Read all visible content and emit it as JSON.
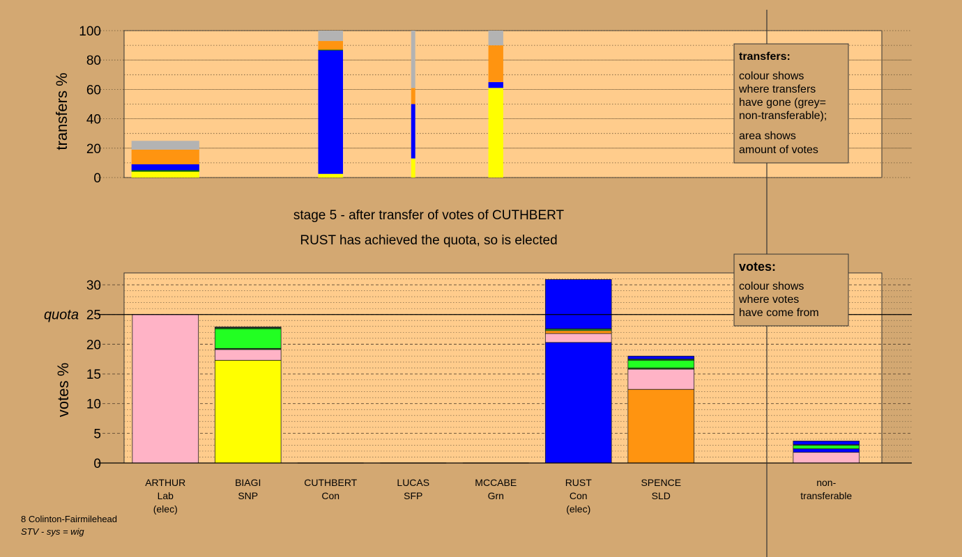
{
  "colors": {
    "page_bg": "#d3a872",
    "plot_bg": "#ffcc8c",
    "Lab": "#ffb3c6",
    "SNP": "#ffff00",
    "Con": "#0000ff",
    "SFP": "#006600",
    "Grn": "#22ff22",
    "SLD": "#ff9410",
    "nontransferable": "#b3b3b3"
  },
  "stage_title": "stage 5 - after transfer of votes of CUTHBERT",
  "stage_subtitle": "RUST has achieved the quota, so is elected",
  "footer": {
    "line1": "8 Colinton-Fairmilehead",
    "line2": "STV - sys = wig"
  },
  "transfers_box": {
    "title": "transfers:",
    "line1": "colour shows",
    "line2": "where transfers",
    "line3": "have gone (grey=",
    "line4": "non-transferable);",
    "line5": "area shows",
    "line6": "amount of votes"
  },
  "votes_box": {
    "title": "votes:",
    "line1": "colour shows",
    "line2": "where votes",
    "line3": "have come from"
  },
  "chart_data": [
    {
      "type": "bar",
      "ylabel": "transfers %",
      "ylim": [
        0,
        100
      ],
      "yticks": [
        0,
        20,
        40,
        60,
        80,
        100
      ],
      "bars": [
        {
          "center": 0.5,
          "width": 0.82,
          "segments": [
            {
              "party": "SNP",
              "value": 4
            },
            {
              "party": "SFP",
              "value": 1
            },
            {
              "party": "Con",
              "value": 4
            },
            {
              "party": "SLD",
              "value": 10
            },
            {
              "party": "nontransferable",
              "value": 6
            }
          ]
        },
        {
          "center": 2.5,
          "width": 0.3,
          "segments": [
            {
              "party": "SNP",
              "value": 2.5
            },
            {
              "party": "Con",
              "value": 84
            },
            {
              "party": "SFP",
              "value": 0.5
            },
            {
              "party": "SLD",
              "value": 6
            },
            {
              "party": "nontransferable",
              "value": 7
            }
          ]
        },
        {
          "center": 3.5,
          "width": 0.05,
          "segments": [
            {
              "party": "SNP",
              "value": 13
            },
            {
              "party": "Con",
              "value": 37
            },
            {
              "party": "SLD",
              "value": 11
            },
            {
              "party": "nontransferable",
              "value": 39
            }
          ]
        },
        {
          "center": 4.5,
          "width": 0.18,
          "segments": [
            {
              "party": "SNP",
              "value": 61
            },
            {
              "party": "Con",
              "value": 4
            },
            {
              "party": "SLD",
              "value": 25
            },
            {
              "party": "nontransferable",
              "value": 10
            }
          ]
        }
      ]
    },
    {
      "type": "bar",
      "ylabel": "votes %",
      "ylim": [
        0,
        32
      ],
      "yticks": [
        0,
        5,
        10,
        15,
        20,
        25,
        30
      ],
      "quota": 25,
      "quota_label": "quota",
      "categories": [
        {
          "name": "ARTHUR",
          "party": "Lab",
          "note": "(elec)"
        },
        {
          "name": "BIAGI",
          "party": "SNP",
          "note": ""
        },
        {
          "name": "CUTHBERT",
          "party": "Con",
          "note": ""
        },
        {
          "name": "LUCAS",
          "party": "SFP",
          "note": ""
        },
        {
          "name": "MCCABE",
          "party": "Grn",
          "note": ""
        },
        {
          "name": "RUST",
          "party": "Con",
          "note": "(elec)"
        },
        {
          "name": "SPENCE",
          "party": "SLD",
          "note": ""
        }
      ],
      "nontransferable_label": [
        "non-",
        "transferable"
      ],
      "bars": [
        {
          "index": 0,
          "segments": [
            {
              "party": "Lab",
              "value": 25
            }
          ]
        },
        {
          "index": 1,
          "segments": [
            {
              "party": "SNP",
              "value": 17.3
            },
            {
              "party": "Lab",
              "value": 1.8
            },
            {
              "party": "SFP",
              "value": 0.2
            },
            {
              "party": "Grn",
              "value": 3.3
            },
            {
              "party": "SFP",
              "value": 0.2
            },
            {
              "party": "Con",
              "value": 0.1
            }
          ]
        },
        {
          "index": 2,
          "segments": []
        },
        {
          "index": 3,
          "segments": []
        },
        {
          "index": 4,
          "segments": []
        },
        {
          "index": 5,
          "segments": [
            {
              "party": "Con",
              "value": 20.3
            },
            {
              "party": "Lab",
              "value": 1.5
            },
            {
              "party": "SLD",
              "value": 0.5
            },
            {
              "party": "Grn",
              "value": 0.2
            },
            {
              "party": "SFP",
              "value": 0.1
            },
            {
              "party": "Con",
              "value": 8.3
            }
          ]
        },
        {
          "index": 6,
          "segments": [
            {
              "party": "SLD",
              "value": 12.4
            },
            {
              "party": "Lab",
              "value": 3.4
            },
            {
              "party": "SFP",
              "value": 0.2
            },
            {
              "party": "Grn",
              "value": 1.3
            },
            {
              "party": "SFP",
              "value": 0.2
            },
            {
              "party": "Con",
              "value": 0.5
            }
          ]
        },
        {
          "index": 8,
          "segments": [
            {
              "party": "Lab",
              "value": 1.8
            },
            {
              "party": "Con",
              "value": 0.6
            },
            {
              "party": "Grn",
              "value": 0.6
            },
            {
              "party": "SFP",
              "value": 0.1
            },
            {
              "party": "Con",
              "value": 0.6
            }
          ]
        }
      ]
    }
  ]
}
